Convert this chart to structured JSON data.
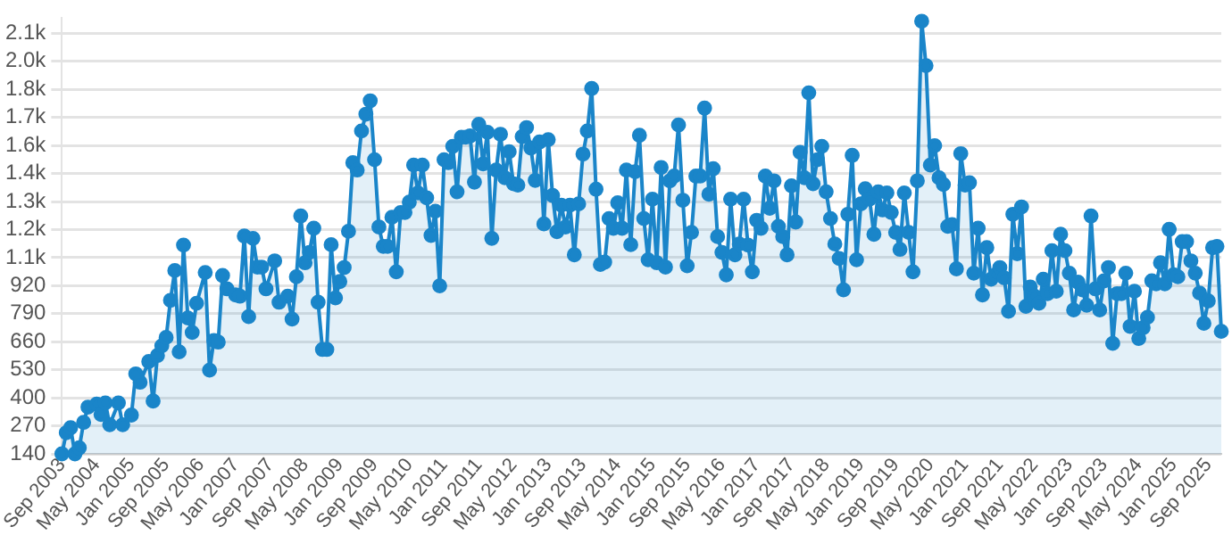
{
  "chart_data": {
    "type": "area",
    "color": "#1a85c9",
    "marker": "circle",
    "grid": "y",
    "legend": false,
    "xlim": [
      "2003-09",
      "2025-12"
    ],
    "xticks": [
      {
        "value": "2003-09",
        "label": "Sep 2003"
      },
      {
        "value": "2004-05",
        "label": "May 2004"
      },
      {
        "value": "2005-01",
        "label": "Jan 2005"
      },
      {
        "value": "2005-09",
        "label": "Sep 2005"
      },
      {
        "value": "2006-05",
        "label": "May 2006"
      },
      {
        "value": "2007-01",
        "label": "Jan 2007"
      },
      {
        "value": "2007-09",
        "label": "Sep 2007"
      },
      {
        "value": "2008-05",
        "label": "May 2008"
      },
      {
        "value": "2009-01",
        "label": "Jan 2009"
      },
      {
        "value": "2009-09",
        "label": "Sep 2009"
      },
      {
        "value": "2010-05",
        "label": "May 2010"
      },
      {
        "value": "2011-01",
        "label": "Jan 2011"
      },
      {
        "value": "2011-09",
        "label": "Sep 2011"
      },
      {
        "value": "2012-05",
        "label": "May 2012"
      },
      {
        "value": "2013-01",
        "label": "Jan 2013"
      },
      {
        "value": "2013-09",
        "label": "Sep 2013"
      },
      {
        "value": "2014-05",
        "label": "May 2014"
      },
      {
        "value": "2015-01",
        "label": "Jan 2015"
      },
      {
        "value": "2015-09",
        "label": "Sep 2015"
      },
      {
        "value": "2016-05",
        "label": "May 2016"
      },
      {
        "value": "2017-01",
        "label": "Jan 2017"
      },
      {
        "value": "2017-09",
        "label": "Sep 2017"
      },
      {
        "value": "2018-05",
        "label": "May 2018"
      },
      {
        "value": "2019-01",
        "label": "Jan 2019"
      },
      {
        "value": "2019-09",
        "label": "Sep 2019"
      },
      {
        "value": "2020-05",
        "label": "May 2020"
      },
      {
        "value": "2021-01",
        "label": "Jan 2021"
      },
      {
        "value": "2021-09",
        "label": "Sep 2021"
      },
      {
        "value": "2022-05",
        "label": "May 2022"
      },
      {
        "value": "2023-01",
        "label": "Jan 2023"
      },
      {
        "value": "2023-09",
        "label": "Sep 2023"
      },
      {
        "value": "2024-05",
        "label": "May 2024"
      },
      {
        "value": "2025-01",
        "label": "Jan 2025"
      },
      {
        "value": "2025-09",
        "label": "Sep 2025"
      }
    ],
    "ylim": [
      140,
      2160
    ],
    "yticks": [
      140,
      270,
      400,
      530,
      660,
      790,
      920,
      {
        "value": 1050,
        "label": "1.1k"
      },
      {
        "value": 1180,
        "label": "1.2k"
      },
      {
        "value": 1310,
        "label": "1.3k"
      },
      {
        "value": 1440,
        "label": "1.4k"
      },
      {
        "value": 1570,
        "label": "1.6k"
      },
      {
        "value": 1700,
        "label": "1.7k"
      },
      {
        "value": 1830,
        "label": "1.8k"
      },
      {
        "value": 1960,
        "label": "2.0k"
      },
      {
        "value": 2090,
        "label": "2.1k"
      }
    ],
    "x": [
      "2003-09",
      "2003-10",
      "2003-11",
      "2003-12",
      "2004-01",
      "2004-02",
      "2004-03",
      "2004-05",
      "2004-06",
      "2004-07",
      "2004-08",
      "2004-10",
      "2004-11",
      "2005-01",
      "2005-02",
      "2005-03",
      "2005-05",
      "2005-06",
      "2005-07",
      "2005-08",
      "2005-09",
      "2005-10",
      "2005-11",
      "2005-12",
      "2006-01",
      "2006-02",
      "2006-03",
      "2006-04",
      "2006-06",
      "2006-07",
      "2006-08",
      "2006-09",
      "2006-10",
      "2006-11",
      "2007-01",
      "2007-02",
      "2007-03",
      "2007-04",
      "2007-05",
      "2007-06",
      "2007-07",
      "2007-08",
      "2007-10",
      "2007-11",
      "2008-01",
      "2008-02",
      "2008-03",
      "2008-04",
      "2008-05",
      "2008-06",
      "2008-07",
      "2008-08",
      "2008-09",
      "2008-10",
      "2008-11",
      "2008-12",
      "2009-01",
      "2009-02",
      "2009-03",
      "2009-04",
      "2009-05",
      "2009-06",
      "2009-07",
      "2009-08",
      "2009-09",
      "2009-10",
      "2009-11",
      "2009-12",
      "2010-01",
      "2010-02",
      "2010-03",
      "2010-04",
      "2010-05",
      "2010-06",
      "2010-07",
      "2010-08",
      "2010-09",
      "2010-10",
      "2010-11",
      "2010-12",
      "2011-01",
      "2011-02",
      "2011-03",
      "2011-04",
      "2011-05",
      "2011-06",
      "2011-07",
      "2011-08",
      "2011-09",
      "2011-10",
      "2011-11",
      "2011-12",
      "2012-01",
      "2012-02",
      "2012-03",
      "2012-04",
      "2012-05",
      "2012-06",
      "2012-07",
      "2012-08",
      "2012-09",
      "2012-10",
      "2012-11",
      "2012-12",
      "2013-01",
      "2013-02",
      "2013-03",
      "2013-04",
      "2013-05",
      "2013-06",
      "2013-07",
      "2013-08",
      "2013-09",
      "2013-10",
      "2013-11",
      "2013-12",
      "2014-01",
      "2014-02",
      "2014-03",
      "2014-04",
      "2014-05",
      "2014-06",
      "2014-07",
      "2014-08",
      "2014-09",
      "2014-10",
      "2014-11",
      "2014-12",
      "2015-01",
      "2015-02",
      "2015-03",
      "2015-04",
      "2015-05",
      "2015-06",
      "2015-07",
      "2015-08",
      "2015-09",
      "2015-10",
      "2015-11",
      "2015-12",
      "2016-01",
      "2016-02",
      "2016-03",
      "2016-04",
      "2016-05",
      "2016-06",
      "2016-07",
      "2016-08",
      "2016-09",
      "2016-10",
      "2016-11",
      "2016-12",
      "2017-01",
      "2017-02",
      "2017-03",
      "2017-04",
      "2017-05",
      "2017-06",
      "2017-07",
      "2017-08",
      "2017-09",
      "2017-10",
      "2017-11",
      "2017-12",
      "2018-01",
      "2018-02",
      "2018-03",
      "2018-04",
      "2018-05",
      "2018-06",
      "2018-07",
      "2018-08",
      "2018-09",
      "2018-10",
      "2018-11",
      "2018-12",
      "2019-01",
      "2019-02",
      "2019-03",
      "2019-04",
      "2019-05",
      "2019-06",
      "2019-07",
      "2019-08",
      "2019-09",
      "2019-10",
      "2019-11",
      "2019-12",
      "2020-01",
      "2020-02",
      "2020-03",
      "2020-04",
      "2020-05",
      "2020-06",
      "2020-07",
      "2020-08",
      "2020-09",
      "2020-10",
      "2020-11",
      "2020-12",
      "2021-01",
      "2021-02",
      "2021-03",
      "2021-04",
      "2021-05",
      "2021-06",
      "2021-07",
      "2021-08",
      "2021-09",
      "2021-10",
      "2021-11",
      "2021-12",
      "2022-01",
      "2022-02",
      "2022-03",
      "2022-04",
      "2022-05",
      "2022-06",
      "2022-07",
      "2022-08",
      "2022-09",
      "2022-10",
      "2022-11",
      "2022-12",
      "2023-01",
      "2023-02",
      "2023-03",
      "2023-04",
      "2023-05",
      "2023-06",
      "2023-07",
      "2023-08",
      "2023-09",
      "2023-10",
      "2023-11",
      "2023-12",
      "2024-01",
      "2024-02",
      "2024-03",
      "2024-04",
      "2024-05",
      "2024-06",
      "2024-07",
      "2024-08",
      "2024-09",
      "2024-10",
      "2024-11",
      "2024-12",
      "2025-01",
      "2025-02",
      "2025-03",
      "2025-04",
      "2025-05",
      "2025-06",
      "2025-07",
      "2025-08",
      "2025-09",
      "2025-10",
      "2025-11",
      "2025-12"
    ],
    "values": [
      140,
      238,
      261,
      140,
      168,
      286,
      357,
      371,
      323,
      376,
      275,
      376,
      275,
      320,
      511,
      472,
      568,
      385,
      596,
      641,
      680,
      852,
      990,
      613,
      1108,
      770,
      703,
      838,
      981,
      528,
      666,
      658,
      967,
      905,
      877,
      871,
      1150,
      776,
      1139,
      1006,
      1006,
      905,
      1035,
      843,
      871,
      765,
      961,
      1243,
      1026,
      1074,
      1186,
      843,
      624,
      624,
      1110,
      863,
      939,
      1004,
      1172,
      1490,
      1456,
      1637,
      1715,
      1777,
      1504,
      1192,
      1102,
      1102,
      1237,
      984,
      1259,
      1259,
      1307,
      1479,
      1350,
      1479,
      1327,
      1153,
      1265,
      919,
      1504,
      1490,
      1566,
      1355,
      1608,
      1608,
      1614,
      1400,
      1668,
      1484,
      1631,
      1139,
      1456,
      1622,
      1420,
      1541,
      1392,
      1386,
      1611,
      1653,
      1558,
      1408,
      1586,
      1206,
      1597,
      1338,
      1170,
      1293,
      1192,
      1293,
      1063,
      1299,
      1530,
      1637,
      1834,
      1367,
      1018,
      1029,
      1231,
      1186,
      1304,
      1186,
      1456,
      1110,
      1448,
      1617,
      1231,
      1040,
      1321,
      1026,
      1468,
      1006,
      1406,
      1428,
      1665,
      1316,
      1012,
      1167,
      1428,
      1428,
      1743,
      1344,
      1462,
      1147,
      1074,
      970,
      1321,
      1063,
      1113,
      1321,
      1108,
      984,
      1223,
      1186,
      1428,
      1279,
      1406,
      1195,
      1147,
      1063,
      1383,
      1215,
      1538,
      1420,
      1814,
      1392,
      1504,
      1566,
      1355,
      1231,
      1113,
      1046,
      900,
      1251,
      1524,
      1040,
      1299,
      1369,
      1321,
      1158,
      1355,
      1271,
      1350,
      1259,
      1167,
      1088,
      1350,
      1167,
      984,
      1406,
      2146,
      1940,
      1479,
      1569,
      1420,
      1389,
      1195,
      1203,
      998,
      1532,
      1386,
      1397,
      978,
      1186,
      877,
      1096,
      950,
      970,
      1004,
      956,
      801,
      1251,
      1068,
      1285,
      824,
      914,
      871,
      838,
      950,
      883,
      1082,
      894,
      1158,
      1082,
      978,
      807,
      936,
      900,
      829,
      1243,
      905,
      807,
      942,
      1004,
      652,
      883,
      883,
      978,
      731,
      894,
      675,
      725,
      773,
      942,
      928,
      1026,
      928,
      1181,
      970,
      961,
      1124,
      1124,
      1035,
      978,
      886,
      745,
      849,
      1096,
      1102,
      708
    ]
  }
}
